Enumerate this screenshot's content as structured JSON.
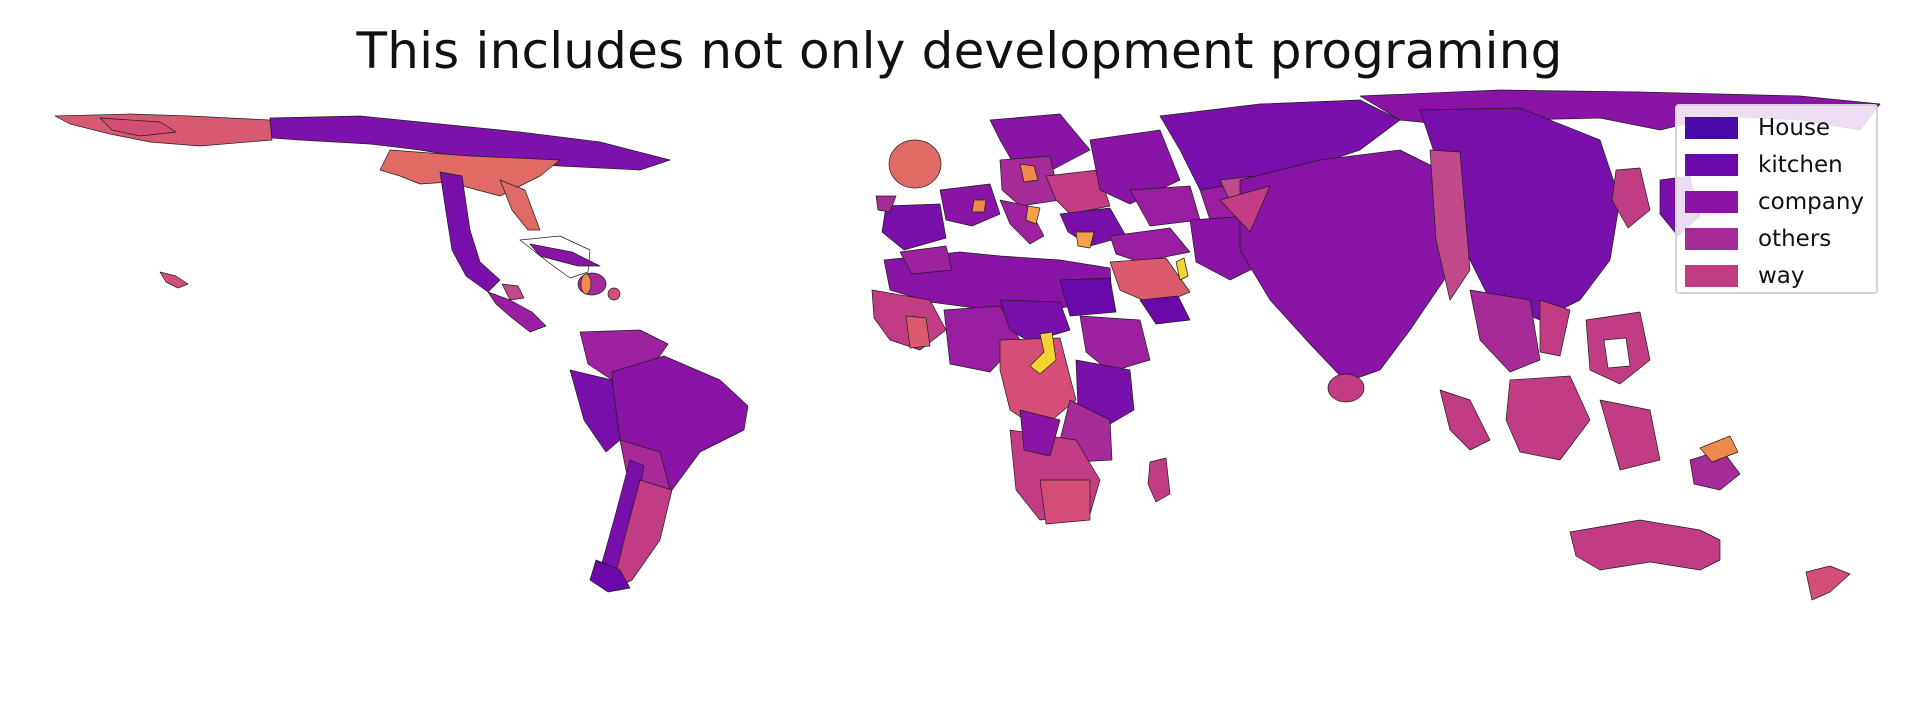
{
  "title": "This includes not only development programing",
  "legend": {
    "items": [
      {
        "label": "House",
        "color": "#4a0ca8"
      },
      {
        "label": "kitchen",
        "color": "#6a08aa"
      },
      {
        "label": "company",
        "color": "#8a14a6"
      },
      {
        "label": "others",
        "color": "#a62a98"
      },
      {
        "label": "way",
        "color": "#c23c84"
      }
    ]
  },
  "palette": {
    "others_dark": "#7a10ac",
    "orange": "#f08a4c",
    "salmon": "#dc5a6e",
    "yellow": "#f6d232",
    "pink": "#d44e78"
  }
}
